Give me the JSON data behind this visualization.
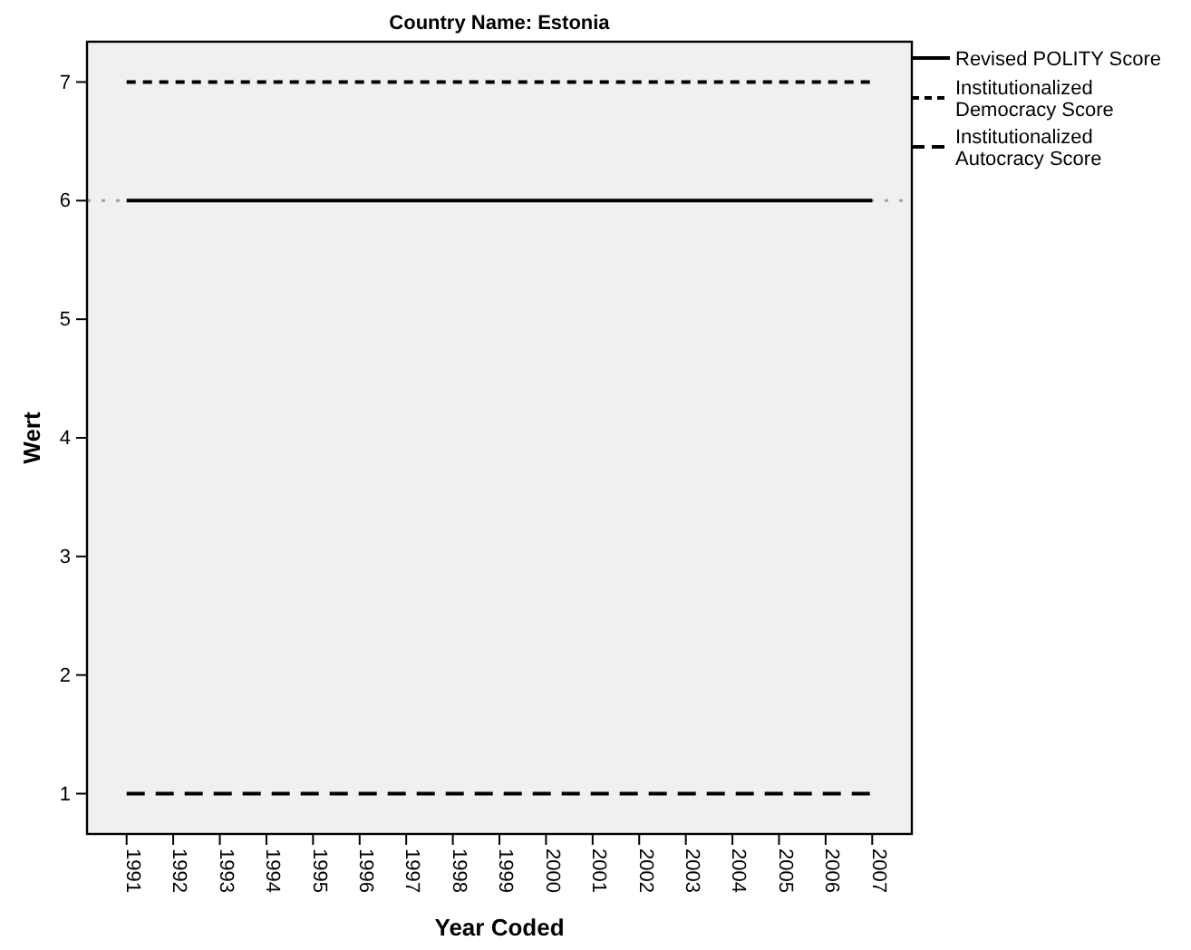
{
  "chart_data": {
    "type": "line",
    "title": "Country Name: Estonia",
    "xlabel": "Year Coded",
    "ylabel": "Wert",
    "categories": [
      "1991",
      "1992",
      "1993",
      "1994",
      "1995",
      "1996",
      "1997",
      "1998",
      "1999",
      "2000",
      "2001",
      "2002",
      "2003",
      "2004",
      "2005",
      "2006",
      "2007"
    ],
    "series": [
      {
        "name": "Revised POLITY Score",
        "color": "#000000",
        "line_style": "solid",
        "values": [
          6,
          6,
          6,
          6,
          6,
          6,
          6,
          6,
          6,
          6,
          6,
          6,
          6,
          6,
          6,
          6,
          6
        ]
      },
      {
        "name": "Institutionalized Democracy Score",
        "color": "#000000",
        "line_style": "dotted",
        "values": [
          7,
          7,
          7,
          7,
          7,
          7,
          7,
          7,
          7,
          7,
          7,
          7,
          7,
          7,
          7,
          7,
          7
        ]
      },
      {
        "name": "Institutionalized Autocracy Score",
        "color": "#000000",
        "line_style": "dashed",
        "values": [
          1,
          1,
          1,
          1,
          1,
          1,
          1,
          1,
          1,
          1,
          1,
          1,
          1,
          1,
          1,
          1,
          1
        ]
      }
    ],
    "ref_lines": [
      {
        "axis": "y",
        "value": 6,
        "color": "#a0a0a0",
        "line_style": "dotted"
      }
    ],
    "ylim": [
      0.66,
      7.34
    ],
    "yticks": [
      1,
      2,
      3,
      4,
      5,
      6,
      7
    ],
    "grid": false,
    "legend": "top right"
  }
}
